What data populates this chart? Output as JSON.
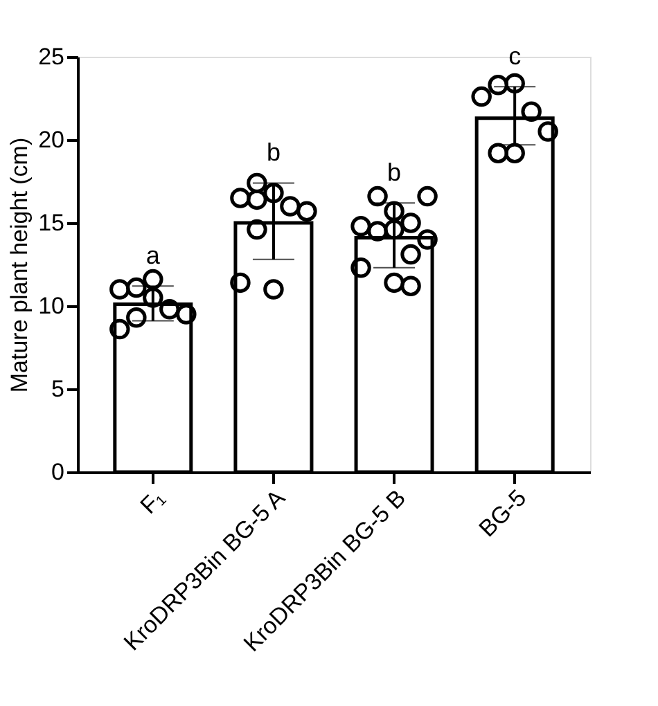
{
  "chart_data": {
    "type": "bar",
    "ylabel": "Mature plant height (cm)",
    "categories": [
      "F₁",
      "KroDRP3Bin BG-5 A",
      "KroDRP3Bin BG-5 B",
      "BG-5"
    ],
    "ylim": [
      0,
      25
    ],
    "yticks": [
      0,
      5,
      10,
      15,
      20,
      25
    ],
    "grid": false,
    "legend": false,
    "series": [
      {
        "type": "bar",
        "color": "#ffffff",
        "values": [
          10.1,
          15.0,
          14.1,
          21.3
        ],
        "errors": [
          [
            9.1,
            11.2
          ],
          [
            12.8,
            17.4
          ],
          [
            12.3,
            16.2
          ],
          [
            19.7,
            23.2
          ]
        ]
      },
      {
        "type": "scatter",
        "color": "#000000",
        "marker": "circle",
        "x": [
          "F₁",
          "F₁",
          "F₁",
          "F₁",
          "F₁",
          "F₁",
          "F₁",
          "F₁",
          "KroDRP3Bin BG-5 A",
          "KroDRP3Bin BG-5 A",
          "KroDRP3Bin BG-5 A",
          "KroDRP3Bin BG-5 A",
          "KroDRP3Bin BG-5 A",
          "KroDRP3Bin BG-5 A",
          "KroDRP3Bin BG-5 A",
          "KroDRP3Bin BG-5 A",
          "KroDRP3Bin BG-5 A",
          "KroDRP3Bin BG-5 B",
          "KroDRP3Bin BG-5 B",
          "KroDRP3Bin BG-5 B",
          "KroDRP3Bin BG-5 B",
          "KroDRP3Bin BG-5 B",
          "KroDRP3Bin BG-5 B",
          "KroDRP3Bin BG-5 B",
          "KroDRP3Bin BG-5 B",
          "KroDRP3Bin BG-5 B",
          "KroDRP3Bin BG-5 B",
          "KroDRP3Bin BG-5 B",
          "KroDRP3Bin BG-5 B",
          "BG-5",
          "BG-5",
          "BG-5",
          "BG-5",
          "BG-5",
          "BG-5",
          "BG-5"
        ],
        "values": [
          11.0,
          11.1,
          11.6,
          9.8,
          9.5,
          10.5,
          9.3,
          8.6,
          16.5,
          17.4,
          16.8,
          16.0,
          15.7,
          14.6,
          16.4,
          11.0,
          11.4,
          14.8,
          16.6,
          15.7,
          15.0,
          14.0,
          14.5,
          16.6,
          14.6,
          11.2,
          12.3,
          13.1,
          11.4,
          22.6,
          23.3,
          23.4,
          21.7,
          20.5,
          19.2,
          19.2
        ]
      }
    ],
    "annotations": [
      {
        "text": "a",
        "x": "F₁",
        "y": 11.2
      },
      {
        "text": "b",
        "x": "KroDRP3Bin BG-5 A",
        "y": 17.4
      },
      {
        "text": "b",
        "x": "KroDRP3Bin BG-5 B",
        "y": 16.2
      },
      {
        "text": "c",
        "x": "BG-5",
        "y": 23.2
      }
    ]
  }
}
